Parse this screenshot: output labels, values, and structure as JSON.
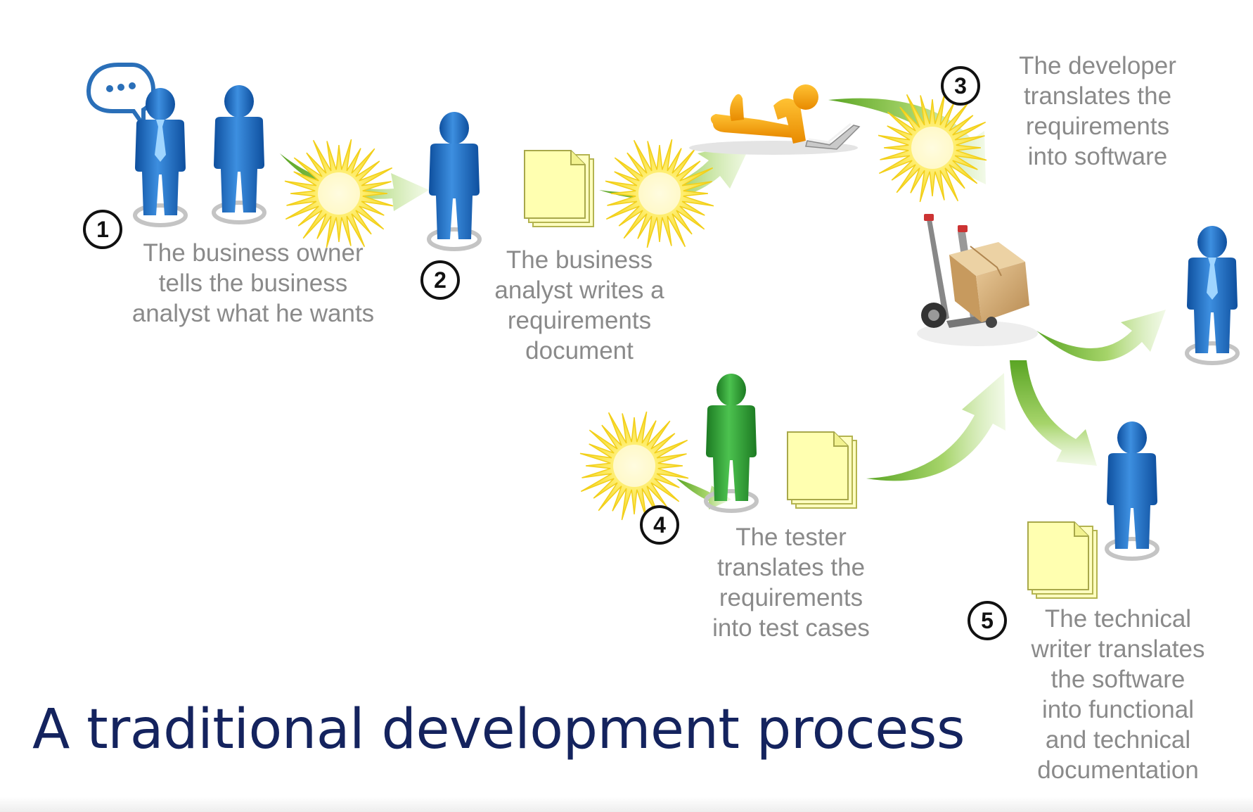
{
  "title": "A traditional development process",
  "steps": [
    {
      "number": "1",
      "caption": "The business owner\ntells the business\nanalyst what he wants"
    },
    {
      "number": "2",
      "caption": "The business\nanalyst  writes a\nrequirements\ndocument"
    },
    {
      "number": "3",
      "caption": "The developer\ntranslates the\nrequirements\ninto software"
    },
    {
      "number": "4",
      "caption": "The tester\ntranslates the\nrequirements\ninto test cases"
    },
    {
      "number": "5",
      "caption": "The technical\nwriter translates\nthe software\ninto functional\nand technical\ndocumentation"
    }
  ],
  "icons": [
    "speech-bubble-icon",
    "business-owner-icon",
    "business-analyst-icon",
    "requirements-document-icon",
    "developer-laptop-icon",
    "software-hand-truck-icon",
    "tester-icon",
    "test-cases-document-icon",
    "technical-writer-icon",
    "documentation-icon",
    "end-user-icon",
    "starburst-icon",
    "flow-arrow-icon"
  ],
  "colors": {
    "title": "#14235e",
    "caption": "#8a8a8a",
    "person_blue": "#1f72c9",
    "person_green": "#2fa338",
    "burst": "#f8e23a",
    "arrow": "#7cbd3c",
    "document": "#ffffb0"
  }
}
